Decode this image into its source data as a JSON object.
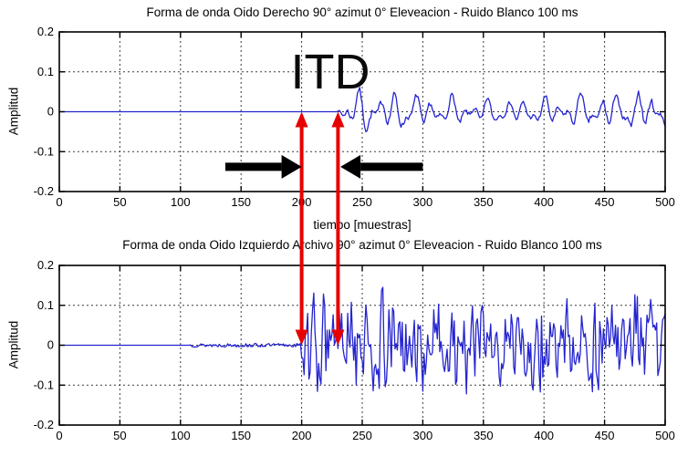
{
  "figure": {
    "background": "#ffffff",
    "axis_color": "#000000",
    "grid_color": "#3c3c3c"
  },
  "annotations": {
    "itd_label": "ITD",
    "marker_color": "#e60000",
    "marker_samples": [
      200,
      230
    ],
    "black_arrow_color": "#000000",
    "black_arrows": [
      {
        "from_sample": 137,
        "to_sample": 200,
        "amplitude": -0.138,
        "direction": "right"
      },
      {
        "from_sample": 300,
        "to_sample": 232,
        "amplitude": -0.138,
        "direction": "left"
      }
    ]
  },
  "chart_data": [
    {
      "type": "line",
      "title": "Forma de onda Oido Derecho 90° azimut 0° Eleveacion - Ruido Blanco 100 ms",
      "xlabel": "tiempo [muestras]",
      "ylabel": "Amplitud",
      "xlim": [
        0,
        500
      ],
      "ylim": [
        -0.2,
        0.2
      ],
      "xticks": [
        0,
        50,
        100,
        150,
        200,
        250,
        300,
        350,
        400,
        450,
        500
      ],
      "yticks": [
        0.2,
        0.1,
        0,
        -0.1,
        -0.2
      ],
      "ytick_labels": [
        "0.2",
        "0.1",
        "0",
        "-0.1",
        "-0.2"
      ],
      "grid": true,
      "legend": null,
      "series": [
        {
          "name": "oido-derecho",
          "color": "#2424d0",
          "description": "flat at 0 until sample ~230, then low-amplitude narrowband oscillation of about ±0.05 continuing to sample 500",
          "signal": {
            "kind": "tonal",
            "flat_until": 229,
            "onset_ramp": 8,
            "peak_amplitude": 0.05,
            "seed": 7
          }
        }
      ]
    },
    {
      "type": "line",
      "title": "Forma de onda Oido Izquierdo Archivo 90° azimut 0° Eleveacion - Ruido Blanco 100 ms",
      "xlabel": "",
      "ylabel": "Amplitud",
      "xlim": [
        0,
        500
      ],
      "ylim": [
        -0.2,
        0.2
      ],
      "xticks": [
        0,
        50,
        100,
        150,
        200,
        250,
        300,
        350,
        400,
        450,
        500
      ],
      "yticks": [
        0.2,
        0.1,
        0,
        -0.1,
        -0.2
      ],
      "ytick_labels": [
        "0.2",
        "0.1",
        "0",
        "-0.1",
        "-0.2"
      ],
      "grid": true,
      "legend": null,
      "series": [
        {
          "name": "oido-izquierdo",
          "color": "#2424d0",
          "description": "flat at 0 until ~110, faint ripple (±0.005) until ~198, then broadband white-noise burst with peaks near ±0.17 continuing to sample 500",
          "signal": {
            "kind": "noise",
            "silence_until": 108,
            "faint_until": 198,
            "faint_amplitude": 0.0045,
            "rms_scale": 0.13,
            "peak_amplitude": 0.185,
            "seed": 13
          }
        }
      ]
    }
  ]
}
